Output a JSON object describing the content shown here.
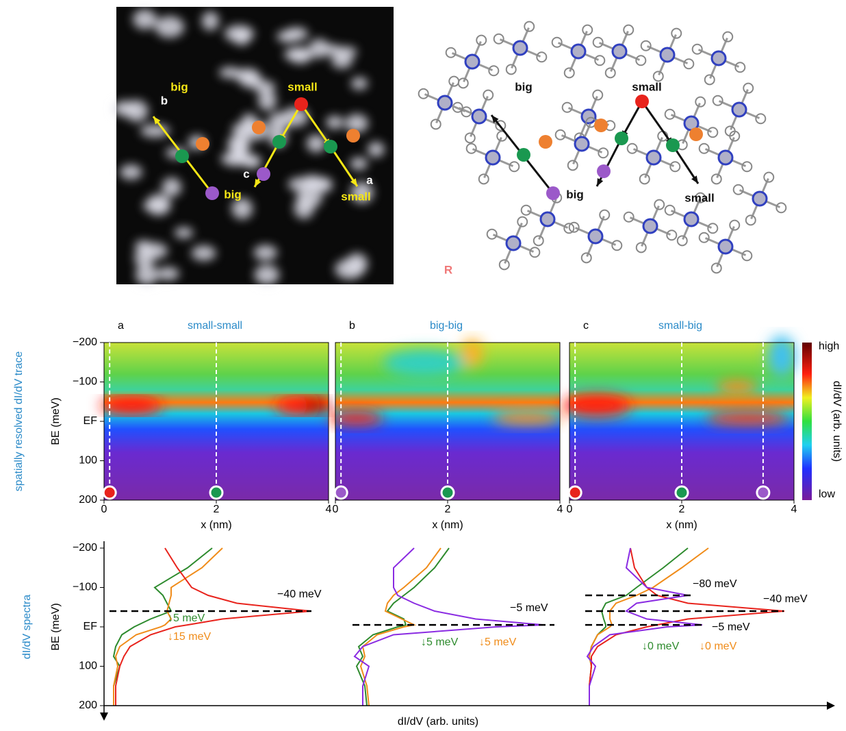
{
  "stm_image": {
    "labels": [
      {
        "text": "big",
        "color": "#f5e615"
      },
      {
        "text": "b",
        "color": "#ffffff"
      },
      {
        "text": "small",
        "color": "#f5e615"
      },
      {
        "text": "c",
        "color": "#ffffff"
      },
      {
        "text": "big",
        "color": "#f5e615"
      },
      {
        "text": "a",
        "color": "#ffffff"
      },
      {
        "text": "small",
        "color": "#f5e615"
      }
    ]
  },
  "molecular_model": {
    "labels": [
      "big",
      "small",
      "big",
      "small",
      "R"
    ]
  },
  "heatmaps": {
    "side_label": "spatially resolved dI/dV trace",
    "ylabel": "BE (meV)",
    "xlabel": "x (nm)",
    "ylim": [
      -200,
      200
    ],
    "xlim": [
      0,
      4
    ],
    "yticks": [
      {
        "value": -200,
        "label": "−200"
      },
      {
        "value": -100,
        "label": "−100"
      },
      {
        "value": 0,
        "label": "EF"
      },
      100,
      200
    ],
    "xticks": [
      0,
      2,
      4
    ],
    "colorbar": {
      "high": "high",
      "low": "low",
      "label": "dI/dV (arb. units)"
    },
    "panels": [
      {
        "letter": "a",
        "title": "small-small",
        "markers": [
          {
            "x": 0.1,
            "color": "#e8231c"
          },
          {
            "x": 2,
            "color": "#1a9850"
          }
        ]
      },
      {
        "letter": "b",
        "title": "big-big",
        "markers": [
          {
            "x": 0.1,
            "color": "#9b59c9"
          },
          {
            "x": 2,
            "color": "#1a9850"
          }
        ]
      },
      {
        "letter": "c",
        "title": "small-big",
        "markers": [
          {
            "x": 0.1,
            "color": "#e8231c"
          },
          {
            "x": 2,
            "color": "#1a9850"
          },
          {
            "x": 3.45,
            "color": "#9b59c9"
          }
        ]
      }
    ]
  },
  "spectra": {
    "side_label": "dI/dV spectra",
    "ylabel": "BE (meV)",
    "xlabel": "dI/dV (arb. units)",
    "ylim": [
      -200,
      200
    ],
    "xlim": [
      0,
      1
    ],
    "yticks": [
      {
        "value": -200,
        "label": "−200"
      },
      {
        "value": -100,
        "label": "−100"
      },
      {
        "value": 0,
        "label": "EF"
      },
      100,
      200
    ],
    "be": [
      -200,
      -150,
      -100,
      -80,
      -60,
      -40,
      -20,
      -5,
      0,
      20,
      50,
      75,
      100,
      150,
      200
    ],
    "panels": [
      {
        "series": [
          {
            "color": "#2e8b2e",
            "values": [
              0.5,
              0.38,
              0.22,
              0.26,
              0.28,
              0.3,
              0.2,
              0.14,
              0.12,
              0.06,
              0.03,
              0.02,
              0.05,
              0.02,
              0.02
            ]
          },
          {
            "color": "#f08c1a",
            "values": [
              0.55,
              0.45,
              0.3,
              0.3,
              0.29,
              0.28,
              0.3,
              0.27,
              0.25,
              0.13,
              0.05,
              0.03,
              0.04,
              0.02,
              0.02
            ]
          },
          {
            "color": "#e8231c",
            "values": [
              0.27,
              0.33,
              0.4,
              0.48,
              0.62,
              0.98,
              0.55,
              0.38,
              0.32,
              0.2,
              0.1,
              0.07,
              0.05,
              0.03,
              0.03
            ]
          }
        ],
        "peaks": [
          {
            "value": -40,
            "label": "−40 meV"
          }
        ],
        "shifts": [
          {
            "label": "↓5 meV",
            "color": "#2e8b2e"
          },
          {
            "label": "↓15 meV",
            "color": "#f08c1a"
          }
        ]
      },
      {
        "series": [
          {
            "color": "#2e8b2e",
            "values": [
              0.47,
              0.4,
              0.3,
              0.25,
              0.2,
              0.17,
              0.25,
              0.26,
              0.22,
              0.1,
              0.03,
              0.05,
              0.02,
              0.06,
              0.07
            ]
          },
          {
            "color": "#f08c1a",
            "values": [
              0.43,
              0.36,
              0.25,
              0.2,
              0.17,
              0.16,
              0.24,
              0.3,
              0.25,
              0.12,
              0.05,
              0.06,
              0.04,
              0.07,
              0.08
            ]
          },
          {
            "color": "#8a2be2",
            "values": [
              0.3,
              0.2,
              0.2,
              0.22,
              0.3,
              0.4,
              0.6,
              0.93,
              0.7,
              0.2,
              0.05,
              0.01,
              0.08,
              0.05,
              0.05
            ]
          }
        ],
        "peaks": [
          {
            "value": -5,
            "label": "−5 meV"
          }
        ],
        "shifts": [
          {
            "label": "↓5 meV",
            "color": "#2e8b2e"
          },
          {
            "label": "↓5 meV",
            "color": "#f08c1a"
          }
        ]
      },
      {
        "series": [
          {
            "color": "#2e8b2e",
            "values": [
              0.5,
              0.38,
              0.25,
              0.2,
              0.1,
              0.08,
              0.09,
              0.1,
              0.1,
              0.06,
              0.03,
              0.02,
              0.03,
              0.02,
              0.02
            ]
          },
          {
            "color": "#f08c1a",
            "values": [
              0.6,
              0.47,
              0.33,
              0.25,
              0.15,
              0.12,
              0.12,
              0.13,
              0.12,
              0.06,
              0.03,
              0.02,
              0.03,
              0.02,
              0.02
            ]
          },
          {
            "color": "#e8231c",
            "values": [
              0.22,
              0.24,
              0.3,
              0.35,
              0.5,
              0.97,
              0.5,
              0.35,
              0.3,
              0.15,
              0.06,
              0.03,
              0.03,
              0.02,
              0.02
            ]
          },
          {
            "color": "#8a2be2",
            "values": [
              0.22,
              0.2,
              0.3,
              0.5,
              0.25,
              0.2,
              0.3,
              0.57,
              0.4,
              0.12,
              0.04,
              0.01,
              0.05,
              0.02,
              0.02
            ]
          }
        ],
        "peaks": [
          {
            "value": -80,
            "label": "−80 meV"
          },
          {
            "value": -40,
            "label": "−40 meV"
          },
          {
            "value": -5,
            "label": "−5 meV"
          }
        ],
        "shifts": [
          {
            "label": "↓0 meV",
            "color": "#2e8b2e"
          },
          {
            "label": "↓0 meV",
            "color": "#f08c1a"
          }
        ]
      }
    ]
  }
}
